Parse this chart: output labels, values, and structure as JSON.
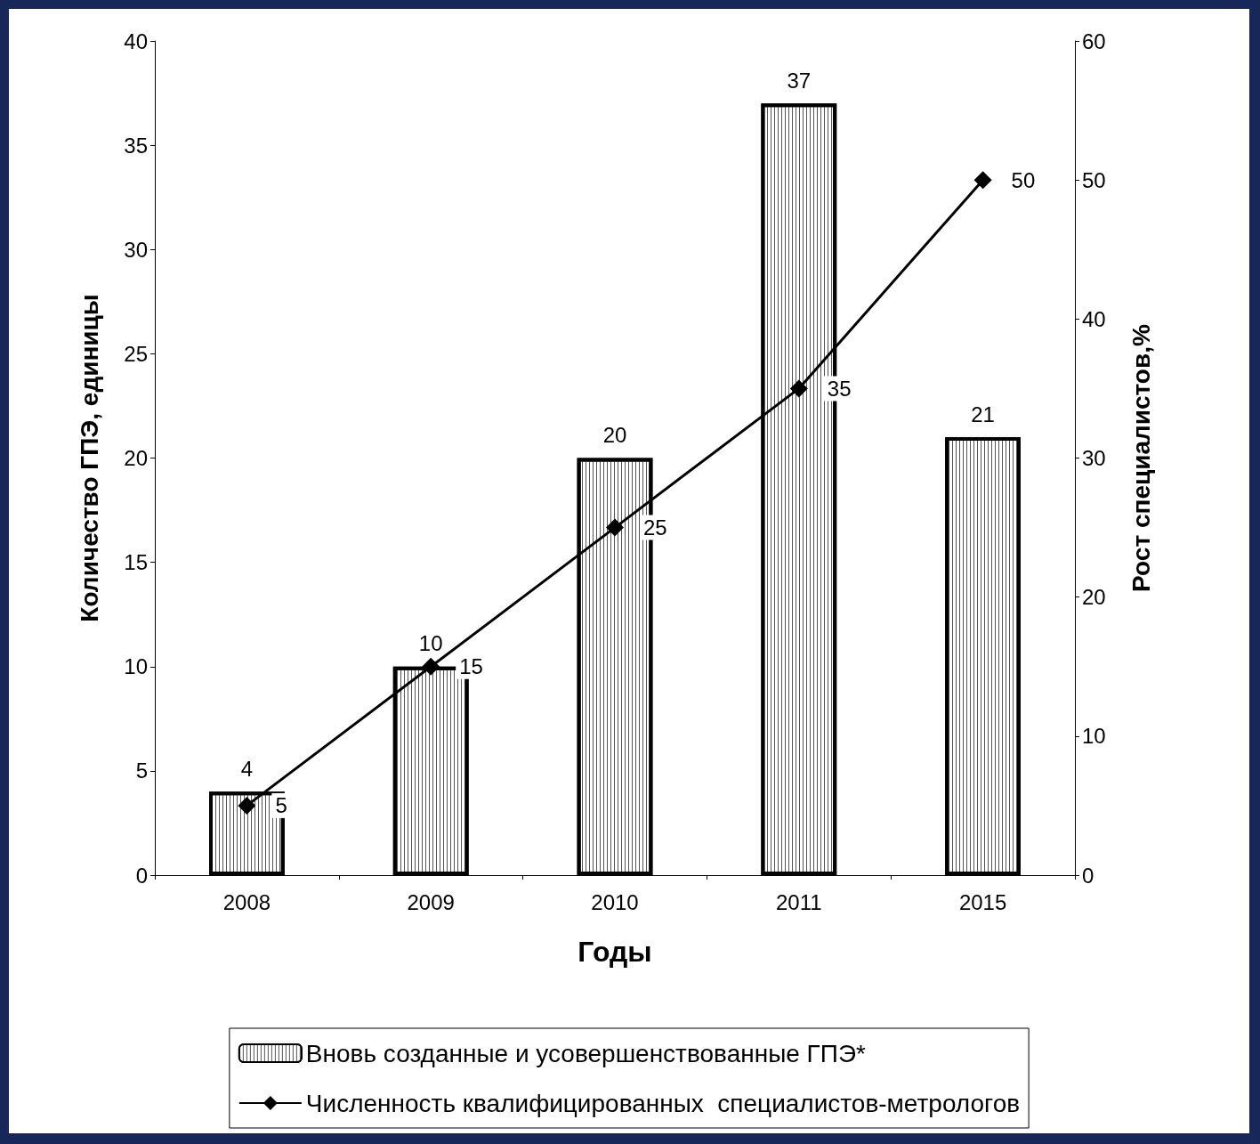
{
  "chart_data": {
    "type": "bar",
    "xlabel": "Годы",
    "ylabel": "Количество ГПЭ, единицы",
    "y2label": "Рост специалистов,%",
    "categories": [
      "2008",
      "2009",
      "2010",
      "2011",
      "2015"
    ],
    "series": [
      {
        "name": "Вновь созданные и усовершенствованные ГПЭ*",
        "color": "#ffffff",
        "values": [
          4,
          10,
          20,
          37,
          21
        ]
      },
      {
        "name": "Численность квалифицированных  специалистов-метрологов",
        "type": "line",
        "axis": "y2",
        "color": "#000000",
        "marker": "diamond",
        "values": [
          5,
          15,
          25,
          35,
          50
        ]
      }
    ],
    "ylim": [
      0,
      40
    ],
    "yticks": [
      0,
      5,
      10,
      15,
      20,
      25,
      30,
      35,
      40
    ],
    "y2lim": [
      0,
      60
    ],
    "y2ticks": [
      0,
      10,
      20,
      30,
      40,
      50,
      60
    ],
    "data_labels": true,
    "grid": false,
    "legend": "bottom"
  }
}
